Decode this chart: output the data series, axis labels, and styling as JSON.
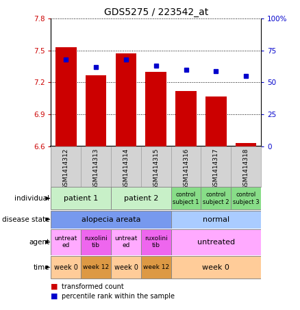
{
  "title": "GDS5275 / 223542_at",
  "samples": [
    "GSM1414312",
    "GSM1414313",
    "GSM1414314",
    "GSM1414315",
    "GSM1414316",
    "GSM1414317",
    "GSM1414318"
  ],
  "bar_values": [
    7.53,
    7.27,
    7.47,
    7.3,
    7.12,
    7.07,
    6.63
  ],
  "dot_values": [
    68,
    62,
    68,
    63,
    60,
    59,
    55
  ],
  "ylim": [
    6.6,
    7.8
  ],
  "yticks": [
    6.6,
    6.9,
    7.2,
    7.5,
    7.8
  ],
  "yticks_right": [
    0,
    25,
    50,
    75,
    100
  ],
  "bar_color": "#cc0000",
  "dot_color": "#0000cc",
  "bg_chart": "#ffffff",
  "bg_gsm": "#d3d3d3",
  "individual_colors": [
    "#c8f0c8",
    "#c8f0c8",
    "#c8f0c8",
    "#c8f0c8",
    "#88dd88",
    "#88dd88",
    "#88dd88"
  ],
  "individual_patient1_color": "#c8f0c8",
  "individual_patient2_color": "#c8f0c8",
  "individual_control_color": "#88dd88",
  "disease_alopecia_color": "#7799ee",
  "disease_normal_color": "#aaccff",
  "agent_untreat_color": "#ffaaff",
  "agent_ruxolini_color": "#ee66ee",
  "agent_untreated_color": "#ffaaff",
  "time_week0_color": "#ffcc99",
  "time_week12_color": "#dd9944",
  "legend_items": [
    "transformed count",
    "percentile rank within the sample"
  ],
  "row_label_names": [
    "individual",
    "disease state",
    "agent",
    "time"
  ]
}
